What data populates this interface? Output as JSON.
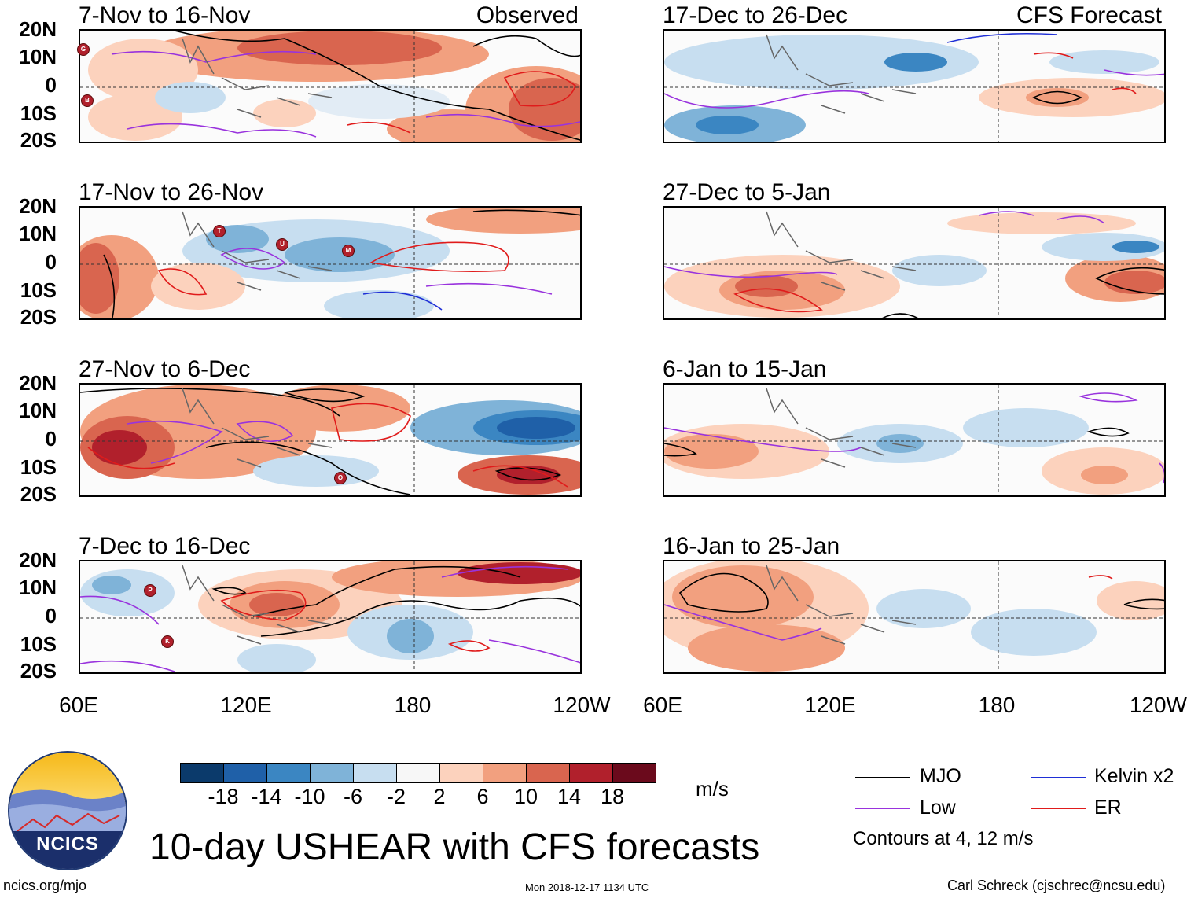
{
  "title": "10-day USHEAR with CFS forecasts",
  "units": "m/s",
  "observed_label": "Observed",
  "forecast_label": "CFS Forecast",
  "lat_labels": [
    "20N",
    "10N",
    "0",
    "10S",
    "20S"
  ],
  "lon_labels": [
    "60E",
    "120E",
    "180",
    "120W"
  ],
  "panels_left": [
    {
      "title": "7-Nov to 16-Nov"
    },
    {
      "title": "17-Nov to 26-Nov"
    },
    {
      "title": "27-Nov to 6-Dec"
    },
    {
      "title": "7-Dec to 16-Dec"
    }
  ],
  "panels_right": [
    {
      "title": "17-Dec to 26-Dec"
    },
    {
      "title": "27-Dec to 5-Jan"
    },
    {
      "title": "6-Jan to 15-Jan"
    },
    {
      "title": "16-Jan to 25-Jan"
    }
  ],
  "colorbar": {
    "labels": [
      "-18",
      "-14",
      "-10",
      "-6",
      "-2",
      "2",
      "6",
      "10",
      "14",
      "18"
    ],
    "colors": [
      "#0b3a6b",
      "#1f60a8",
      "#3b86c2",
      "#7fb3d8",
      "#c7def0",
      "#f7f7f7",
      "#fcd2bd",
      "#f2a07f",
      "#d9654f",
      "#b1202c",
      "#6b0a1c"
    ]
  },
  "legend": {
    "mjo": "MJO",
    "low": "Low",
    "kelvin": "Kelvin x2",
    "er": "ER",
    "contours": "Contours at 4, 12 m/s",
    "colors": {
      "mjo": "#000000",
      "low": "#9933dd",
      "kelvin": "#1f2fd6",
      "er": "#e01b1b"
    }
  },
  "logo_text": "NCICS",
  "footer": {
    "url": "ncics.org/mjo",
    "timestamp": "Mon 2018-12-17 1134 UTC",
    "credit": "Carl Schreck (cjschrec@ncsu.edu)"
  },
  "storm_markers": [
    {
      "panel": 0,
      "letter": "G"
    },
    {
      "panel": 0,
      "letter": "B"
    },
    {
      "panel": 1,
      "letter": "T"
    },
    {
      "panel": 1,
      "letter": "U"
    },
    {
      "panel": 1,
      "letter": "M"
    },
    {
      "panel": 2,
      "letter": "O"
    },
    {
      "panel": 3,
      "letter": "P"
    },
    {
      "panel": 3,
      "letter": "K"
    }
  ]
}
